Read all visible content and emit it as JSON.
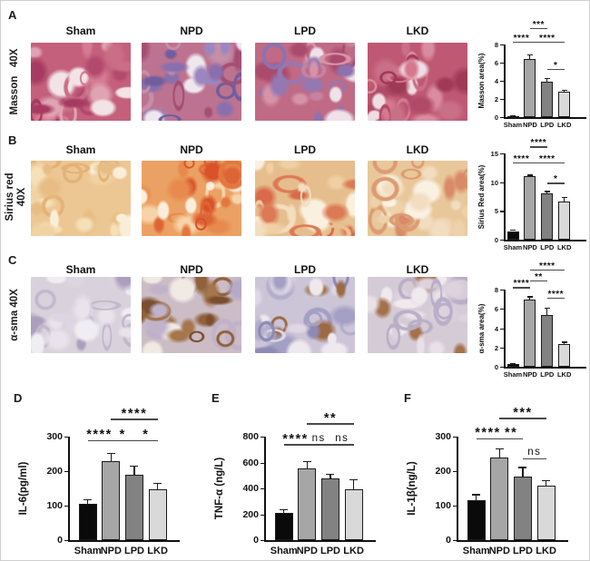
{
  "panel_letters": [
    "A",
    "B",
    "C",
    "D",
    "E",
    "F"
  ],
  "columns": [
    "Sham",
    "NPD",
    "LPD",
    "LKD"
  ],
  "bar_colors": [
    "#0a0a0a",
    "#a6a6a6",
    "#828282",
    "#d9d9d9"
  ],
  "histology": {
    "rows": [
      {
        "panel": "A",
        "row_label": "Masson   40X",
        "stain": "masson",
        "images": [
          {
            "col": "Sham",
            "palette": {
              "base": "#c4607c",
              "lumen": "#f2e3e6",
              "blobs": [
                "#d57b92",
                "#a63a60",
                "#e0a3b3",
                "#b24a6e",
                "#cb6d87"
              ]
            }
          },
          {
            "col": "NPD",
            "palette": {
              "base": "#bd7390",
              "lumen": "#efe7ee",
              "blobs": [
                "#8a6fae",
                "#6f5d9e",
                "#d3a7bc",
                "#a44e74",
                "#9d86c0",
                "#c490a8"
              ]
            }
          },
          {
            "col": "LPD",
            "palette": {
              "base": "#c06a86",
              "lumen": "#efe2e9",
              "blobs": [
                "#9478b2",
                "#d794a8",
                "#aa4a6c",
                "#c782a0",
                "#8d72ae"
              ]
            }
          },
          {
            "col": "LKD",
            "palette": {
              "base": "#bf5872",
              "lumen": "#eedde2",
              "blobs": [
                "#d6798f",
                "#a03956",
                "#c96f88",
                "#b04a68",
                "#da8ba0"
              ]
            }
          }
        ]
      },
      {
        "panel": "B",
        "row_label": "Sirius red\n40X",
        "stain": "sirius-red",
        "images": [
          {
            "col": "Sham",
            "palette": {
              "base": "#edc793",
              "lumen": "#f9efd8",
              "blobs": [
                "#f6e0b8",
                "#e3b277",
                "#f0d3a2",
                "#e8bd85"
              ]
            }
          },
          {
            "col": "NPD",
            "palette": {
              "base": "#eba163",
              "lumen": "#fbeedd",
              "blobs": [
                "#e4773d",
                "#d8532a",
                "#f6d3a8",
                "#e78a4e",
                "#dd6435"
              ]
            }
          },
          {
            "col": "LPD",
            "palette": {
              "base": "#e6bd8d",
              "lumen": "#faf0e0",
              "blobs": [
                "#dc7a55",
                "#f3dec0",
                "#efcfa3",
                "#d96a4a",
                "#e9c292"
              ]
            }
          },
          {
            "col": "LKD",
            "palette": {
              "base": "#e8c79a",
              "lumen": "#faf1e2",
              "blobs": [
                "#f2ddc0",
                "#dc9b70",
                "#d98a68",
                "#eed2ab"
              ]
            }
          }
        ]
      },
      {
        "panel": "C",
        "row_label": "α-sma 40X",
        "stain": "a-sma",
        "images": [
          {
            "col": "Sham",
            "palette": {
              "base": "#d9d2dc",
              "lumen": "#f1eef3",
              "blobs": [
                "#e9e4ec",
                "#c3b7cc",
                "#ab9fbd",
                "#ded5e2"
              ]
            }
          },
          {
            "col": "NPD",
            "palette": {
              "base": "#cbbcc6",
              "lumen": "#f0e9e4",
              "blobs": [
                "#90613c",
                "#7a4e2e",
                "#b4a9c6",
                "#a5754c",
                "#c0b2ca"
              ]
            }
          },
          {
            "col": "LPD",
            "palette": {
              "base": "#ccc5d8",
              "lumen": "#efe9ef",
              "blobs": [
                "#a49fc4",
                "#8f8ab5",
                "#9c6a43",
                "#ded8e6",
                "#b3aecb"
              ]
            }
          },
          {
            "col": "LKD",
            "palette": {
              "base": "#d5cbd6",
              "lumen": "#f0eaef",
              "blobs": [
                "#e9e1e8",
                "#b9aec7",
                "#a4714a",
                "#ddd2de"
              ]
            }
          }
        ]
      }
    ]
  },
  "chart_data": [
    {
      "id": "masson",
      "panel": "A",
      "type": "bar",
      "categories": [
        "Sham",
        "NPD",
        "LPD",
        "LKD"
      ],
      "values": [
        0.12,
        6.4,
        3.9,
        2.85
      ],
      "errors": [
        0.05,
        0.55,
        0.4,
        0.15
      ],
      "ylabel": "Masson area(%)",
      "xlabel": "",
      "ylim": [
        0,
        8
      ],
      "yticks": [
        0,
        2,
        4,
        6,
        8
      ],
      "grid": false,
      "legend": "none",
      "significance": [
        {
          "from": 0,
          "to": 1,
          "label": "****",
          "y": 8.35
        },
        {
          "from": 1,
          "to": 3,
          "label": "****",
          "y": 8.35
        },
        {
          "from": 1,
          "to": 2,
          "label": "***",
          "y": 9.8
        },
        {
          "from": 2,
          "to": 3,
          "label": "*",
          "y": 5.3
        }
      ]
    },
    {
      "id": "sirius",
      "panel": "B",
      "type": "bar",
      "categories": [
        "Sham",
        "NPD",
        "LPD",
        "LKD"
      ],
      "values": [
        1.5,
        11.0,
        8.0,
        6.7
      ],
      "errors": [
        0.2,
        0.3,
        0.45,
        0.8
      ],
      "ylabel": "Sirius Red area(%)",
      "xlabel": "",
      "ylim": [
        0,
        15
      ],
      "yticks": [
        0,
        5,
        10,
        15
      ],
      "grid": false,
      "legend": "none",
      "significance": [
        {
          "from": 0,
          "to": 1,
          "label": "****",
          "y": 13.5
        },
        {
          "from": 1,
          "to": 3,
          "label": "****",
          "y": 13.5
        },
        {
          "from": 1,
          "to": 2,
          "label": "****",
          "y": 16.2
        },
        {
          "from": 2,
          "to": 3,
          "label": "*",
          "y": 9.9
        }
      ]
    },
    {
      "id": "asma",
      "panel": "C",
      "type": "bar",
      "categories": [
        "Sham",
        "NPD",
        "LPD",
        "LKD"
      ],
      "values": [
        0.3,
        7.0,
        5.4,
        2.35
      ],
      "errors": [
        0.1,
        0.3,
        0.7,
        0.25
      ],
      "ylabel": "α-sma area(%)",
      "xlabel": "",
      "ylim": [
        0,
        8
      ],
      "yticks": [
        0,
        2,
        4,
        6,
        8
      ],
      "grid": false,
      "legend": "none",
      "significance": [
        {
          "from": 0,
          "to": 1,
          "label": "****",
          "y": 8.25
        },
        {
          "from": 1,
          "to": 2,
          "label": "**",
          "y": 8.95
        },
        {
          "from": 1,
          "to": 3,
          "label": "****",
          "y": 10.1
        },
        {
          "from": 2,
          "to": 3,
          "label": "****",
          "y": 7.2
        }
      ]
    },
    {
      "id": "il6",
      "panel": "D",
      "type": "bar",
      "categories": [
        "Sham",
        "NPD",
        "LPD",
        "LKD"
      ],
      "values": [
        105,
        228,
        190,
        148
      ],
      "errors": [
        14,
        25,
        25,
        17
      ],
      "ylabel": "IL-6(pg/ml)",
      "xlabel": "",
      "ylim": [
        0,
        300
      ],
      "yticks": [
        0,
        100,
        200,
        300
      ],
      "grid": false,
      "legend": "none",
      "significance": [
        {
          "from": 0,
          "to": 1,
          "label": "****",
          "y": 290
        },
        {
          "from": 1,
          "to": 2,
          "label": "*",
          "y": 290
        },
        {
          "from": 2,
          "to": 3,
          "label": "*",
          "y": 290
        },
        {
          "from": 1,
          "to": 3,
          "label": "****",
          "y": 352
        }
      ]
    },
    {
      "id": "tnfa",
      "panel": "E",
      "type": "bar",
      "categories": [
        "Sham",
        "NPD",
        "LPD",
        "LKD"
      ],
      "values": [
        210,
        555,
        480,
        395
      ],
      "errors": [
        32,
        55,
        35,
        75
      ],
      "ylabel": "TNF-α (ng/L)",
      "xlabel": "",
      "ylim": [
        0,
        800
      ],
      "yticks": [
        0,
        200,
        400,
        600,
        800
      ],
      "grid": false,
      "legend": "none",
      "significance": [
        {
          "from": 0,
          "to": 1,
          "label": "****",
          "y": 742
        },
        {
          "from": 1,
          "to": 2,
          "label": "ns",
          "y": 742
        },
        {
          "from": 2,
          "to": 3,
          "label": "ns",
          "y": 742
        },
        {
          "from": 1,
          "to": 3,
          "label": "**",
          "y": 905
        }
      ]
    },
    {
      "id": "il1b",
      "panel": "F",
      "type": "bar",
      "categories": [
        "Sham",
        "NPD",
        "LPD",
        "LKD"
      ],
      "values": [
        115,
        240,
        185,
        157
      ],
      "errors": [
        18,
        25,
        27,
        18
      ],
      "ylabel": "IL-1β(ng/L)",
      "xlabel": "",
      "ylim": [
        0,
        300
      ],
      "yticks": [
        0,
        100,
        200,
        300
      ],
      "grid": false,
      "legend": "none",
      "significance": [
        {
          "from": 0,
          "to": 1,
          "label": "****",
          "y": 296
        },
        {
          "from": 1,
          "to": 2,
          "label": "**",
          "y": 296
        },
        {
          "from": 2,
          "to": 3,
          "label": "ns",
          "y": 238
        },
        {
          "from": 1,
          "to": 3,
          "label": "***",
          "y": 354
        }
      ]
    }
  ]
}
